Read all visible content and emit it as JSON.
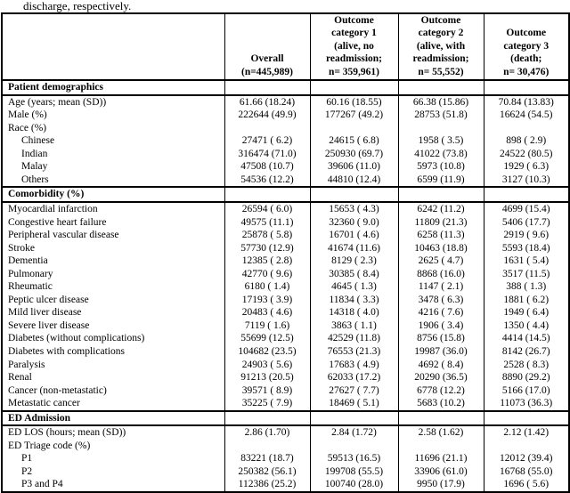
{
  "caption": "discharge, respectively.",
  "table": {
    "columns": [
      {
        "name": "row-label",
        "lines": []
      },
      {
        "name": "overall",
        "lines": [
          "Overall",
          "(n=445,989)"
        ]
      },
      {
        "name": "outcome-category-1",
        "lines": [
          "Outcome",
          "category 1",
          "(alive, no",
          "readmission;",
          "n= 359,961)"
        ]
      },
      {
        "name": "outcome-category-2",
        "lines": [
          "Outcome",
          "category 2",
          "(alive, with",
          "readmission;",
          "n= 55,552)"
        ]
      },
      {
        "name": "outcome-category-3",
        "lines": [
          "Outcome",
          "category 3",
          "(death;",
          "n= 30,476)"
        ]
      }
    ],
    "rows": [
      {
        "label": "Patient demographics",
        "type": "section",
        "values": [
          "",
          "",
          "",
          ""
        ]
      },
      {
        "label": "Age (years; mean (SD))",
        "type": "data",
        "values": [
          "61.66 (18.24)",
          "60.16 (18.55)",
          "66.38 (15.86)",
          "70.84 (13.83)"
        ]
      },
      {
        "label": "Male (%)",
        "type": "data",
        "values": [
          "222644 (49.9)",
          "177267 (49.2)",
          "28753 (51.8)",
          "16624 (54.5)"
        ]
      },
      {
        "label": "Race (%)",
        "type": "data",
        "values": [
          "",
          "",
          "",
          ""
        ]
      },
      {
        "label": "Chinese",
        "type": "indent",
        "values": [
          "27471 ( 6.2)",
          "24615 ( 6.8)",
          "1958 ( 3.5)",
          "898 ( 2.9)"
        ]
      },
      {
        "label": "Indian",
        "type": "indent",
        "values": [
          "316474 (71.0)",
          "250930 (69.7)",
          "41022 (73.8)",
          "24522 (80.5)"
        ]
      },
      {
        "label": "Malay",
        "type": "indent",
        "values": [
          "47508 (10.7)",
          "39606 (11.0)",
          "5973 (10.8)",
          "1929 ( 6.3)"
        ]
      },
      {
        "label": "Others",
        "type": "indent",
        "values": [
          "54536 (12.2)",
          "44810 (12.4)",
          "6599 (11.9)",
          "3127 (10.3)"
        ]
      },
      {
        "label": "Comorbidity (%)",
        "type": "section",
        "values": [
          "",
          "",
          "",
          ""
        ]
      },
      {
        "label": "Myocardial infarction",
        "type": "data",
        "values": [
          "26594 ( 6.0)",
          "15653 ( 4.3)",
          "6242 (11.2)",
          "4699 (15.4)"
        ]
      },
      {
        "label": "Congestive heart failure",
        "type": "data",
        "values": [
          "49575 (11.1)",
          "32360 ( 9.0)",
          "11809 (21.3)",
          "5406 (17.7)"
        ]
      },
      {
        "label": "Peripheral vascular disease",
        "type": "data",
        "values": [
          "25878 ( 5.8)",
          "16701 ( 4.6)",
          "6258 (11.3)",
          "2919 ( 9.6)"
        ]
      },
      {
        "label": "Stroke",
        "type": "data",
        "values": [
          "57730 (12.9)",
          "41674 (11.6)",
          "10463 (18.8)",
          "5593 (18.4)"
        ]
      },
      {
        "label": "Dementia",
        "type": "data",
        "values": [
          "12385 ( 2.8)",
          "8129 ( 2.3)",
          "2625 ( 4.7)",
          "1631 ( 5.4)"
        ]
      },
      {
        "label": "Pulmonary",
        "type": "data",
        "values": [
          "42770 ( 9.6)",
          "30385 ( 8.4)",
          "8868 (16.0)",
          "3517 (11.5)"
        ]
      },
      {
        "label": "Rheumatic",
        "type": "data",
        "values": [
          "6180 ( 1.4)",
          "4645 ( 1.3)",
          "1147 ( 2.1)",
          "388 ( 1.3)"
        ]
      },
      {
        "label": "Peptic ulcer disease",
        "type": "data",
        "values": [
          "17193 ( 3.9)",
          "11834 ( 3.3)",
          "3478 ( 6.3)",
          "1881 ( 6.2)"
        ]
      },
      {
        "label": "Mild liver disease",
        "type": "data",
        "values": [
          "20483 ( 4.6)",
          "14318 ( 4.0)",
          "4216 ( 7.6)",
          "1949 ( 6.4)"
        ]
      },
      {
        "label": "Severe liver disease",
        "type": "data",
        "values": [
          "7119 ( 1.6)",
          "3863 ( 1.1)",
          "1906 ( 3.4)",
          "1350 ( 4.4)"
        ]
      },
      {
        "label": "Diabetes (without complications)",
        "type": "data",
        "values": [
          "55699 (12.5)",
          "42529 (11.8)",
          "8756 (15.8)",
          "4414 (14.5)"
        ]
      },
      {
        "label": "Diabetes with complications",
        "type": "data",
        "values": [
          "104682 (23.5)",
          "76553 (21.3)",
          "19987 (36.0)",
          "8142 (26.7)"
        ]
      },
      {
        "label": "Paralysis",
        "type": "data",
        "values": [
          "24903 ( 5.6)",
          "17683 ( 4.9)",
          "4692 ( 8.4)",
          "2528 ( 8.3)"
        ]
      },
      {
        "label": "Renal",
        "type": "data",
        "values": [
          "91213 (20.5)",
          "62033 (17.2)",
          "20290 (36.5)",
          "8890 (29.2)"
        ]
      },
      {
        "label": "Cancer (non-metastatic)",
        "type": "data",
        "values": [
          "39571 ( 8.9)",
          "27627 ( 7.7)",
          "6778 (12.2)",
          "5166 (17.0)"
        ]
      },
      {
        "label": "Metastatic cancer",
        "type": "data",
        "values": [
          "35225 ( 7.9)",
          "18469 ( 5.1)",
          "5683 (10.2)",
          "11073 (36.3)"
        ]
      },
      {
        "label": "ED Admission",
        "type": "section",
        "values": [
          "",
          "",
          "",
          ""
        ]
      },
      {
        "label": "ED LOS (hours; mean (SD))",
        "type": "data",
        "values": [
          "2.86 (1.70)",
          "2.84 (1.72)",
          "2.58 (1.62)",
          "2.12 (1.42)"
        ]
      },
      {
        "label": "ED Triage code (%)",
        "type": "data",
        "values": [
          "",
          "",
          "",
          ""
        ]
      },
      {
        "label": "P1",
        "type": "indent",
        "values": [
          "83221 (18.7)",
          "59513 (16.5)",
          "11696 (21.1)",
          "12012 (39.4)"
        ]
      },
      {
        "label": "P2",
        "type": "indent",
        "values": [
          "250382 (56.1)",
          "199708 (55.5)",
          "33906 (61.0)",
          "16768 (55.0)"
        ]
      },
      {
        "label": "P3 and P4",
        "type": "indent",
        "values": [
          "112386 (25.2)",
          "100740 (28.0)",
          "9950 (17.9)",
          "1696 ( 5.6)"
        ]
      }
    ]
  }
}
